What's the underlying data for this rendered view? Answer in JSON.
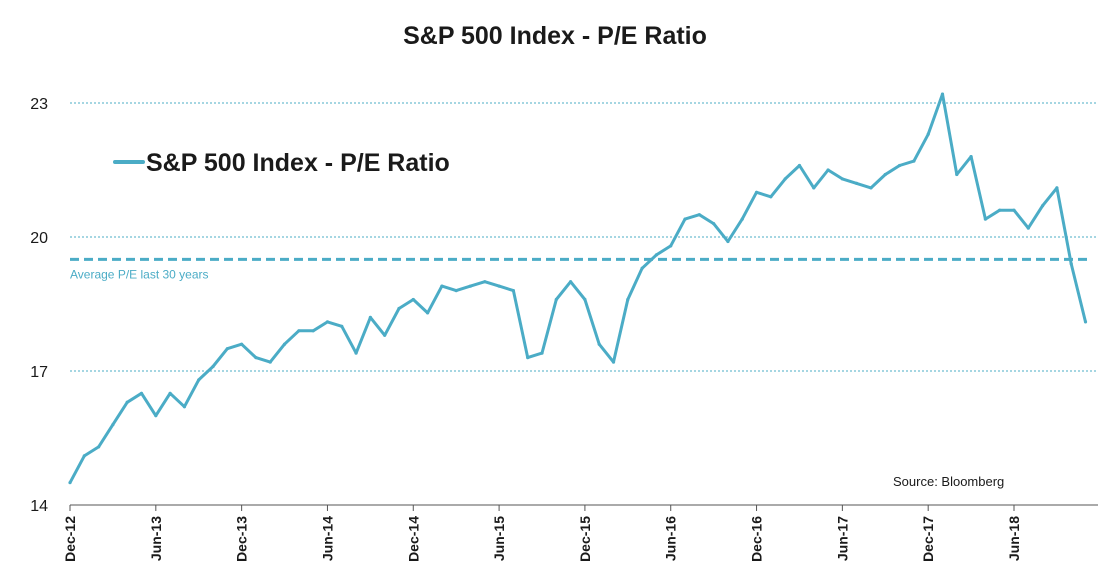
{
  "chart_data": {
    "type": "line",
    "title": "S&P 500 Index - P/E Ratio",
    "source": "Source: Bloomberg",
    "ylim": [
      14,
      23.5
    ],
    "yticks": [
      14,
      17,
      20,
      23
    ],
    "grid": "horizontal dotted at 17, 20 and 23",
    "legend_position": "upper-left",
    "xlim": [
      "2012-12",
      "2018-11"
    ],
    "xtick_labels": [
      "Dec-12",
      "Jun-13",
      "Dec-13",
      "Jun-14",
      "Dec-14",
      "Jun-15",
      "Dec-15",
      "Jun-16",
      "Dec-16",
      "Jun-17",
      "Dec-17",
      "Jun-18"
    ],
    "xtick_dates": [
      "2012-12",
      "2013-06",
      "2013-12",
      "2014-06",
      "2014-12",
      "2015-06",
      "2015-12",
      "2016-06",
      "2016-12",
      "2017-06",
      "2017-12",
      "2018-06"
    ],
    "series": [
      {
        "name": "S&P 500 Index - P/E Ratio",
        "color": "#4BACC6",
        "x": [
          "2012-12",
          "2013-01",
          "2013-02",
          "2013-03",
          "2013-04",
          "2013-05",
          "2013-06",
          "2013-07",
          "2013-08",
          "2013-09",
          "2013-10",
          "2013-11",
          "2013-12",
          "2014-01",
          "2014-02",
          "2014-03",
          "2014-04",
          "2014-05",
          "2014-06",
          "2014-07",
          "2014-08",
          "2014-09",
          "2014-10",
          "2014-11",
          "2014-12",
          "2015-01",
          "2015-02",
          "2015-03",
          "2015-04",
          "2015-05",
          "2015-06",
          "2015-07",
          "2015-08",
          "2015-09",
          "2015-10",
          "2015-11",
          "2015-12",
          "2016-01",
          "2016-02",
          "2016-03",
          "2016-04",
          "2016-05",
          "2016-06",
          "2016-07",
          "2016-08",
          "2016-09",
          "2016-10",
          "2016-11",
          "2016-12",
          "2017-01",
          "2017-02",
          "2017-03",
          "2017-04",
          "2017-05",
          "2017-06",
          "2017-07",
          "2017-08",
          "2017-09",
          "2017-10",
          "2017-11",
          "2017-12",
          "2018-01",
          "2018-02",
          "2018-03",
          "2018-04",
          "2018-05",
          "2018-06",
          "2018-07",
          "2018-08",
          "2018-09",
          "2018-10",
          "2018-11"
        ],
        "values": [
          14.5,
          15.1,
          15.3,
          15.8,
          16.3,
          16.5,
          16.0,
          16.5,
          16.2,
          16.8,
          17.1,
          17.5,
          17.6,
          17.3,
          17.2,
          17.6,
          17.9,
          17.9,
          18.1,
          18.0,
          17.4,
          18.2,
          17.8,
          18.4,
          18.6,
          18.3,
          18.9,
          18.8,
          18.9,
          19.0,
          18.9,
          18.8,
          17.3,
          17.4,
          18.6,
          19.0,
          18.6,
          17.6,
          17.2,
          18.6,
          19.3,
          19.6,
          19.8,
          20.4,
          20.5,
          20.3,
          19.9,
          20.4,
          21.0,
          20.9,
          21.3,
          21.6,
          21.1,
          21.5,
          21.3,
          21.2,
          21.1,
          21.4,
          21.6,
          21.7,
          22.3,
          23.2,
          21.4,
          21.8,
          20.4,
          20.6,
          20.6,
          20.2,
          20.7,
          21.1,
          19.4,
          18.1
        ]
      }
    ],
    "reference_line": {
      "label": "Average P/E last 30 years",
      "value": 19.5,
      "color": "#4BACC6",
      "style": "dashed"
    }
  }
}
